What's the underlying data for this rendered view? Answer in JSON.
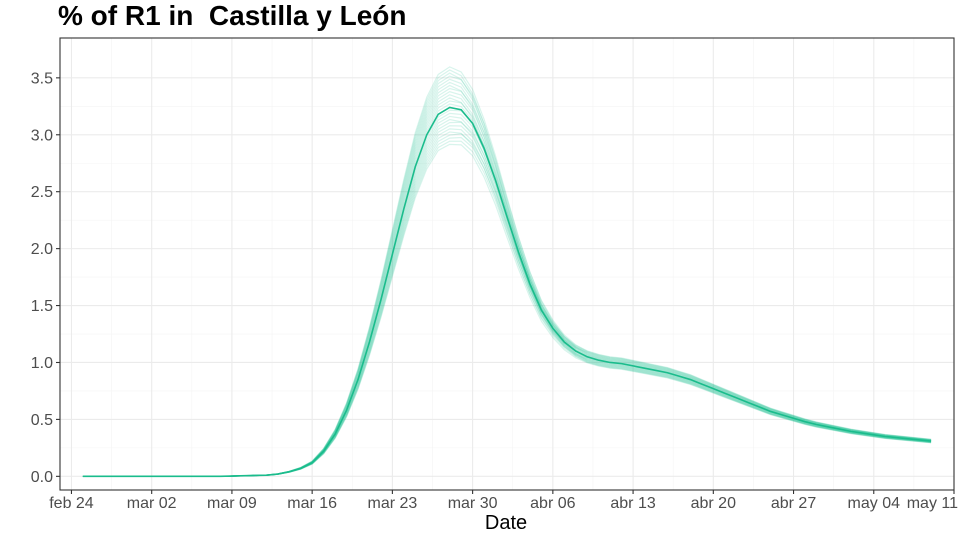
{
  "chart_data": {
    "type": "line",
    "title": "% of R1 in  Castilla y León",
    "xlabel": "Date",
    "ylabel": "",
    "x_axis_type": "date",
    "xlim": [
      "2020-02-23",
      "2020-05-11"
    ],
    "ylim": [
      -0.12,
      3.85
    ],
    "x_tick_labels": [
      "feb 24",
      "mar 02",
      "mar 09",
      "mar 16",
      "mar 23",
      "mar 30",
      "abr 06",
      "abr 13",
      "abr 20",
      "abr 27",
      "may 04",
      "may 11"
    ],
    "x_tick_dates": [
      "2020-02-24",
      "2020-03-02",
      "2020-03-09",
      "2020-03-16",
      "2020-03-23",
      "2020-03-30",
      "2020-04-06",
      "2020-04-13",
      "2020-04-20",
      "2020-04-27",
      "2020-05-04",
      "2020-05-11"
    ],
    "y_ticks": [
      0.0,
      0.5,
      1.0,
      1.5,
      2.0,
      2.5,
      3.0,
      3.5
    ],
    "y_tick_labels": [
      "0.0",
      "0.5",
      "1.0",
      "1.5",
      "2.0",
      "2.5",
      "3.0",
      "3.5"
    ],
    "grid": true,
    "panel_border": true,
    "line_color": "#1abc8c",
    "central_series": {
      "x": [
        "2020-02-25",
        "2020-03-03",
        "2020-03-08",
        "2020-03-12",
        "2020-03-13",
        "2020-03-14",
        "2020-03-15",
        "2020-03-16",
        "2020-03-17",
        "2020-03-18",
        "2020-03-19",
        "2020-03-20",
        "2020-03-21",
        "2020-03-22",
        "2020-03-23",
        "2020-03-24",
        "2020-03-25",
        "2020-03-26",
        "2020-03-27",
        "2020-03-28",
        "2020-03-29",
        "2020-03-30",
        "2020-03-31",
        "2020-04-01",
        "2020-04-02",
        "2020-04-03",
        "2020-04-04",
        "2020-04-05",
        "2020-04-06",
        "2020-04-07",
        "2020-04-08",
        "2020-04-09",
        "2020-04-10",
        "2020-04-11",
        "2020-04-12",
        "2020-04-13",
        "2020-04-14",
        "2020-04-15",
        "2020-04-16",
        "2020-04-17",
        "2020-04-18",
        "2020-04-19",
        "2020-04-20",
        "2020-04-21",
        "2020-04-22",
        "2020-04-23",
        "2020-04-24",
        "2020-04-25",
        "2020-04-26",
        "2020-04-27",
        "2020-04-28",
        "2020-04-29",
        "2020-04-30",
        "2020-05-01",
        "2020-05-02",
        "2020-05-03",
        "2020-05-04",
        "2020-05-05",
        "2020-05-06",
        "2020-05-07",
        "2020-05-08",
        "2020-05-09"
      ],
      "y": [
        0.0,
        0.0,
        0.0,
        0.01,
        0.02,
        0.04,
        0.07,
        0.12,
        0.22,
        0.37,
        0.58,
        0.85,
        1.18,
        1.55,
        1.95,
        2.35,
        2.72,
        3.0,
        3.18,
        3.24,
        3.22,
        3.1,
        2.88,
        2.6,
        2.28,
        1.97,
        1.69,
        1.46,
        1.3,
        1.18,
        1.1,
        1.05,
        1.02,
        1.0,
        0.99,
        0.97,
        0.95,
        0.93,
        0.91,
        0.88,
        0.85,
        0.81,
        0.77,
        0.73,
        0.69,
        0.65,
        0.61,
        0.57,
        0.54,
        0.51,
        0.48,
        0.455,
        0.435,
        0.415,
        0.395,
        0.38,
        0.365,
        0.35,
        0.34,
        0.33,
        0.32,
        0.31
      ]
    },
    "ensemble_band": {
      "lower_scale_at_peak": 0.9,
      "upper_scale_at_peak": 1.11,
      "tail_spread": 0.1,
      "member_count": 26
    }
  }
}
